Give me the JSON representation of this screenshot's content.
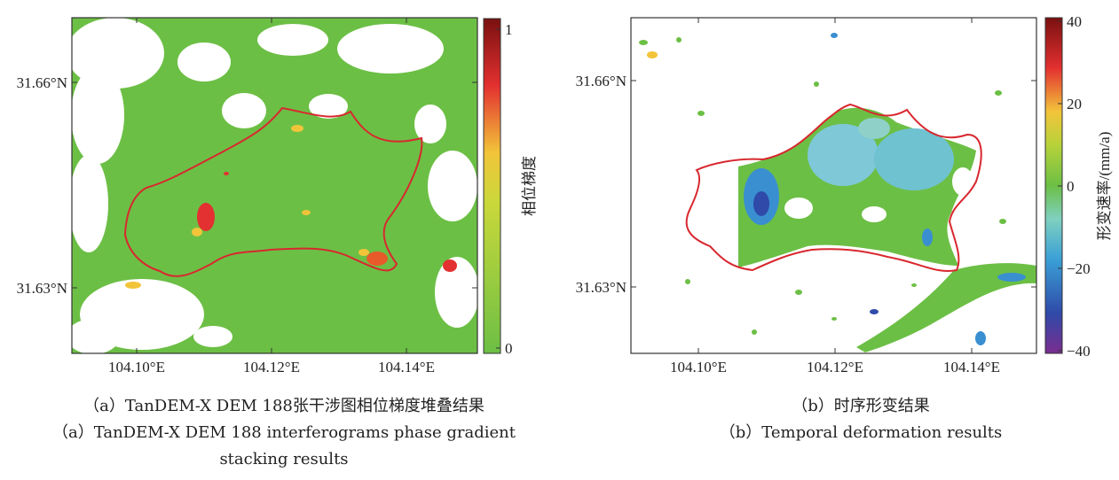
{
  "panel_a": {
    "y_ticks": [
      "31.66°N",
      "31.63°N"
    ],
    "x_ticks": [
      "104.10°E",
      "104.12°E",
      "104.14°E"
    ],
    "colorbar": {
      "title": "相位梯度",
      "ticks": [
        "1",
        "0"
      ],
      "colors": [
        "#ffffff",
        "#7a1010",
        "#e33030",
        "#f2c43a",
        "#6cbf45"
      ]
    },
    "caption_zh": "（a）TanDEM-X DEM 188张干涉图相位梯度堆叠结果",
    "caption_en_1": "（a）TanDEM-X DEM 188 interferograms phase gradient",
    "caption_en_2": "stacking results"
  },
  "panel_b": {
    "y_ticks": [
      "31.66°N",
      "31.63°N"
    ],
    "x_ticks": [
      "104.10°E",
      "104.12°E",
      "104.14°E"
    ],
    "colorbar": {
      "title": "形变速率/(mm/a)",
      "ticks": [
        "40",
        "20",
        "0",
        "−20",
        "−40"
      ]
    },
    "caption_zh": "（b）时序形变结果",
    "caption_en": "（b）Temporal deformation results"
  },
  "colors": {
    "boundary": "#d8282f",
    "phase_background": "#6cbf45",
    "stable": "#6cbf45",
    "subsiding": "#3a8fd1"
  }
}
